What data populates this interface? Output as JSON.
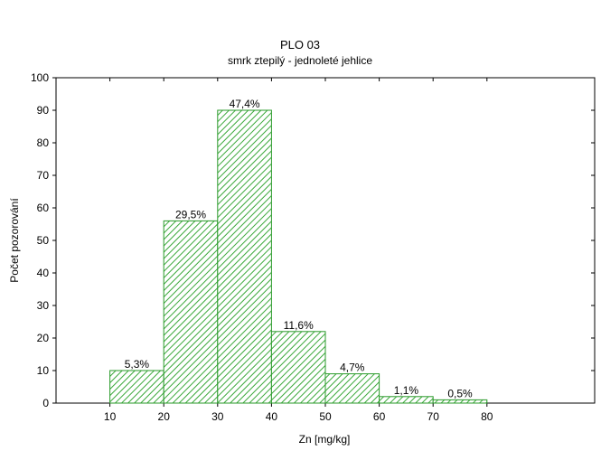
{
  "chart_data": {
    "type": "histogram",
    "title": "PLO 03",
    "subtitle": "smrk ztepilý - jednoleté jehlice",
    "xlabel": "Zn [mg/kg]",
    "ylabel": "Počet pozorování",
    "xlim": [
      0,
      100
    ],
    "ylim": [
      0,
      100
    ],
    "x_ticks": [
      10,
      20,
      30,
      40,
      50,
      60,
      70,
      80
    ],
    "y_ticks": [
      0,
      10,
      20,
      30,
      40,
      50,
      60,
      70,
      80,
      90,
      100
    ],
    "bins": [
      {
        "from": 10,
        "to": 20,
        "count": 10,
        "label": "5,3%"
      },
      {
        "from": 20,
        "to": 30,
        "count": 56,
        "label": "29,5%"
      },
      {
        "from": 30,
        "to": 40,
        "count": 90,
        "label": "47,4%"
      },
      {
        "from": 40,
        "to": 50,
        "count": 22,
        "label": "11,6%"
      },
      {
        "from": 50,
        "to": 60,
        "count": 9,
        "label": "4,7%"
      },
      {
        "from": 60,
        "to": 70,
        "count": 2,
        "label": "1,1%"
      },
      {
        "from": 70,
        "to": 80,
        "count": 1,
        "label": "0,5%"
      }
    ],
    "grid": false,
    "colors": {
      "bar_stroke": "#2a9a2a",
      "bar_hatch": "#3aa83a",
      "bar_fill": "#ffffff"
    }
  }
}
